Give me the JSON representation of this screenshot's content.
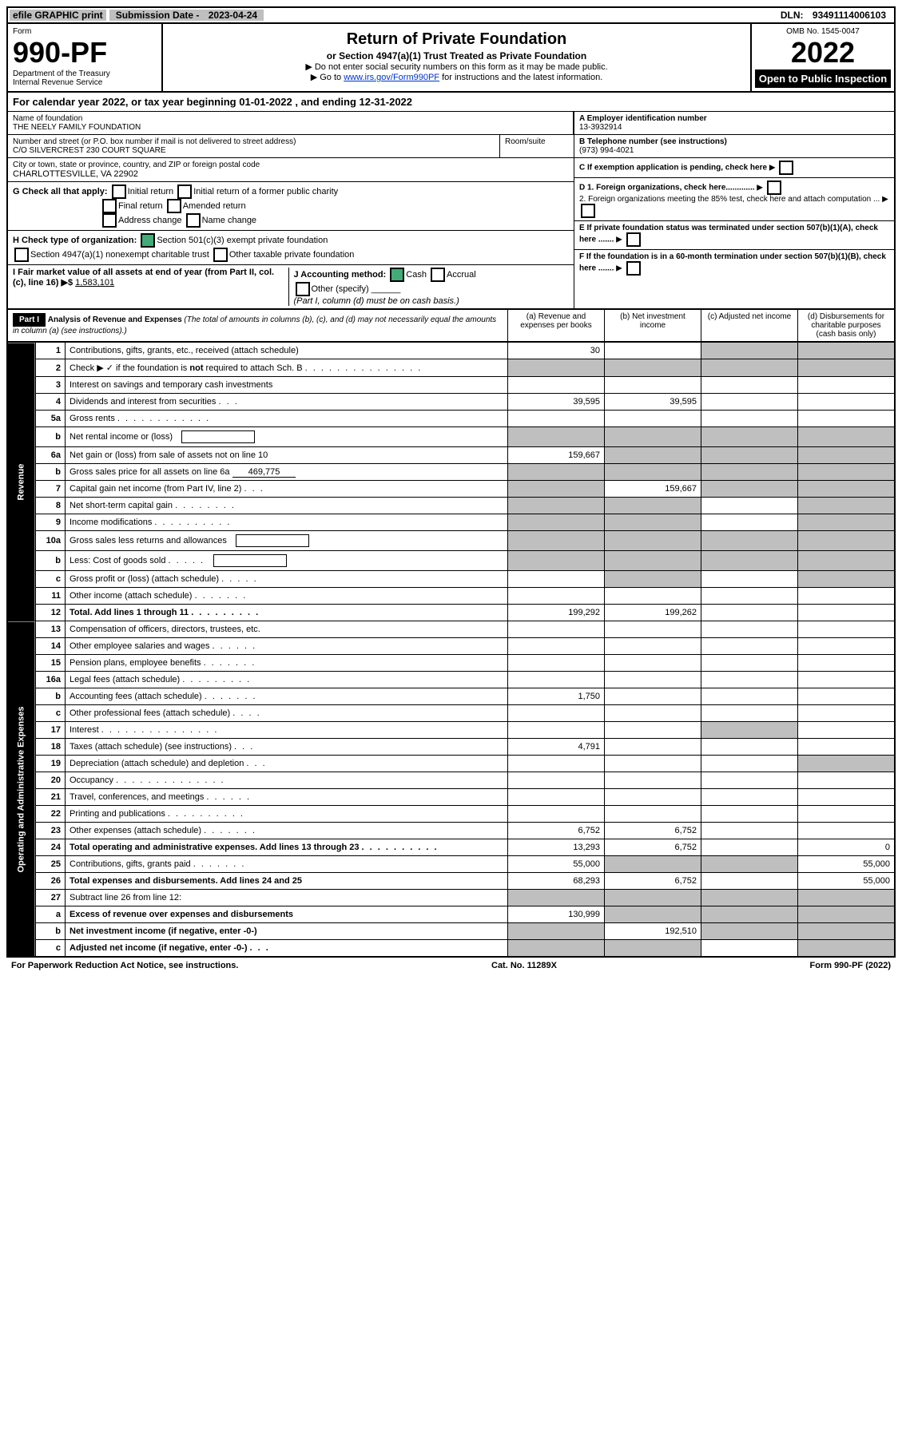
{
  "top": {
    "efile": "efile GRAPHIC print",
    "submission_label": "Submission Date - ",
    "submission_date": "2023-04-24",
    "dln_label": "DLN: ",
    "dln": "93491114006103"
  },
  "header": {
    "form_label": "Form",
    "form_num": "990-PF",
    "dept": "Department of the Treasury",
    "irs": "Internal Revenue Service",
    "title": "Return of Private Foundation",
    "subtitle": "or Section 4947(a)(1) Trust Treated as Private Foundation",
    "instr1": "▶ Do not enter social security numbers on this form as it may be made public.",
    "instr2_prefix": "▶ Go to ",
    "instr2_link": "www.irs.gov/Form990PF",
    "instr2_suffix": " for instructions and the latest information.",
    "omb": "OMB No. 1545-0047",
    "year": "2022",
    "open": "Open to Public Inspection"
  },
  "cal_year": {
    "prefix": "For calendar year 2022, or tax year beginning ",
    "begin": "01-01-2022",
    "mid": " , and ending ",
    "end": "12-31-2022"
  },
  "id": {
    "name_label": "Name of foundation",
    "name": "THE NEELY FAMILY FOUNDATION",
    "addr_label": "Number and street (or P.O. box number if mail is not delivered to street address)",
    "addr": "C/O SILVERCREST 230 COURT SQUARE",
    "room_label": "Room/suite",
    "city_label": "City or town, state or province, country, and ZIP or foreign postal code",
    "city": "CHARLOTTESVILLE, VA  22902",
    "a_label": "A Employer identification number",
    "a": "13-3932914",
    "b_label": "B Telephone number (see instructions)",
    "b": "(973) 994-4021",
    "c": "C If exemption application is pending, check here",
    "g_label": "G Check all that apply:",
    "g1": "Initial return",
    "g2": "Final return",
    "g3": "Address change",
    "g4": "Initial return of a former public charity",
    "g5": "Amended return",
    "g6": "Name change",
    "d1": "D 1. Foreign organizations, check here.............",
    "d2": "2. Foreign organizations meeting the 85% test, check here and attach computation ...",
    "h_label": "H Check type of organization:",
    "h1": "Section 501(c)(3) exempt private foundation",
    "h2": "Section 4947(a)(1) nonexempt charitable trust",
    "h3": "Other taxable private foundation",
    "e": "E If private foundation status was terminated under section 507(b)(1)(A), check here .......",
    "i_label": "I Fair market value of all assets at end of year (from Part II, col. (c), line 16) ▶$ ",
    "i_val": "1,583,101",
    "j_label": "J Accounting method:",
    "j_cash": "Cash",
    "j_accrual": "Accrual",
    "j_other": "Other (specify)",
    "j_note": "(Part I, column (d) must be on cash basis.)",
    "f": "F If the foundation is in a 60-month termination under section 507(b)(1)(B), check here ......."
  },
  "part1": {
    "label": "Part I",
    "title": "Analysis of Revenue and Expenses ",
    "note": "(The total of amounts in columns (b), (c), and (d) may not necessarily equal the amounts in column (a) (see instructions).)",
    "col_a": "(a)   Revenue and expenses per books",
    "col_b": "(b)   Net investment income",
    "col_c": "(c)   Adjusted net income",
    "col_d": "(d)   Disbursements for charitable purposes (cash basis only)"
  },
  "sides": {
    "revenue": "Revenue",
    "expenses": "Operating and Administrative Expenses"
  },
  "rows": [
    {
      "n": "1",
      "d": "Contributions, gifts, grants, etc., received (attach schedule)",
      "a": "30",
      "grey_c": true,
      "grey_d": true
    },
    {
      "n": "2",
      "d": "Check ▶ ✓  if the foundation is not required to attach Sch. B",
      "dots": ".  .  .  .  .  .  .  .  .  .  .  .  .  .  .",
      "grey_all": true,
      "bold_not": true
    },
    {
      "n": "3",
      "d": "Interest on savings and temporary cash investments"
    },
    {
      "n": "4",
      "d": "Dividends and interest from securities",
      "dots": ".  .  .",
      "a": "39,595",
      "b": "39,595"
    },
    {
      "n": "5a",
      "d": "Gross rents",
      "dots": ".  .  .  .  .  .  .  .  .  .  .  ."
    },
    {
      "n": "b",
      "d": "Net rental income or (loss)",
      "inline_box": true,
      "grey_all": true
    },
    {
      "n": "6a",
      "d": "Net gain or (loss) from sale of assets not on line 10",
      "a": "159,667",
      "grey_b": true,
      "grey_c": true,
      "grey_d": true
    },
    {
      "n": "b",
      "d": "Gross sales price for all assets on line 6a",
      "inline_val": "469,775",
      "grey_all": true
    },
    {
      "n": "7",
      "d": "Capital gain net income (from Part IV, line 2)",
      "dots": ".  .  .",
      "grey_a": true,
      "b": "159,667",
      "grey_c": true,
      "grey_d": true
    },
    {
      "n": "8",
      "d": "Net short-term capital gain",
      "dots": ".  .  .  .  .  .  .  .",
      "grey_a": true,
      "grey_b": true,
      "grey_d": true
    },
    {
      "n": "9",
      "d": "Income modifications",
      "dots": ".  .  .  .  .  .  .  .  .  .",
      "grey_a": true,
      "grey_b": true,
      "grey_d": true
    },
    {
      "n": "10a",
      "d": "Gross sales less returns and allowances",
      "inline_box": true,
      "grey_all": true
    },
    {
      "n": "b",
      "d": "Less: Cost of goods sold",
      "dots": ".  .  .  .  .",
      "inline_box": true,
      "grey_all": true
    },
    {
      "n": "c",
      "d": "Gross profit or (loss) (attach schedule)",
      "dots": ".  .  .  .  .",
      "grey_b": true,
      "grey_d": true
    },
    {
      "n": "11",
      "d": "Other income (attach schedule)",
      "dots": ".  .  .  .  .  .  ."
    },
    {
      "n": "12",
      "d": "Total. Add lines 1 through 11",
      "dots": ".  .  .  .  .  .  .  .  .",
      "a": "199,292",
      "b": "199,262",
      "bold": true
    },
    {
      "n": "13",
      "d": "Compensation of officers, directors, trustees, etc."
    },
    {
      "n": "14",
      "d": "Other employee salaries and wages",
      "dots": ".  .  .  .  .  ."
    },
    {
      "n": "15",
      "d": "Pension plans, employee benefits",
      "dots": ".  .  .  .  .  .  ."
    },
    {
      "n": "16a",
      "d": "Legal fees (attach schedule)",
      "dots": ".  .  .  .  .  .  .  .  ."
    },
    {
      "n": "b",
      "d": "Accounting fees (attach schedule)",
      "dots": ".  .  .  .  .  .  .",
      "a": "1,750"
    },
    {
      "n": "c",
      "d": "Other professional fees (attach schedule)",
      "dots": ".  .  .  ."
    },
    {
      "n": "17",
      "d": "Interest",
      "dots": ".  .  .  .  .  .  .  .  .  .  .  .  .  .  .",
      "grey_c": true
    },
    {
      "n": "18",
      "d": "Taxes (attach schedule) (see instructions)",
      "dots": ".  .  .",
      "a": "4,791"
    },
    {
      "n": "19",
      "d": "Depreciation (attach schedule) and depletion",
      "dots": ".  .  .",
      "grey_d": true
    },
    {
      "n": "20",
      "d": "Occupancy",
      "dots": ".  .  .  .  .  .  .  .  .  .  .  .  .  ."
    },
    {
      "n": "21",
      "d": "Travel, conferences, and meetings",
      "dots": ".  .  .  .  .  ."
    },
    {
      "n": "22",
      "d": "Printing and publications",
      "dots": ".  .  .  .  .  .  .  .  .  ."
    },
    {
      "n": "23",
      "d": "Other expenses (attach schedule)",
      "dots": ".  .  .  .  .  .  .",
      "a": "6,752",
      "b": "6,752"
    },
    {
      "n": "24",
      "d": "Total operating and administrative expenses. Add lines 13 through 23",
      "dots": ".  .  .  .  .  .  .  .  .  .",
      "a": "13,293",
      "b": "6,752",
      "d_": "0",
      "bold": true
    },
    {
      "n": "25",
      "d": "Contributions, gifts, grants paid",
      "dots": ".  .  .  .  .  .  .",
      "a": "55,000",
      "grey_b": true,
      "grey_c": true,
      "d_": "55,000"
    },
    {
      "n": "26",
      "d": "Total expenses and disbursements. Add lines 24 and 25",
      "a": "68,293",
      "b": "6,752",
      "d_": "55,000",
      "bold": true
    },
    {
      "n": "27",
      "d": "Subtract line 26 from line 12:",
      "grey_all": true
    },
    {
      "n": "a",
      "d": "Excess of revenue over expenses and disbursements",
      "a": "130,999",
      "grey_b": true,
      "grey_c": true,
      "grey_d": true,
      "bold": true
    },
    {
      "n": "b",
      "d": "Net investment income (if negative, enter -0-)",
      "grey_a": true,
      "b": "192,510",
      "grey_c": true,
      "grey_d": true,
      "bold": true
    },
    {
      "n": "c",
      "d": "Adjusted net income (if negative, enter -0-)",
      "dots": ".  .  .",
      "grey_a": true,
      "grey_b": true,
      "grey_d": true,
      "bold": true
    }
  ],
  "footer": {
    "left": "For Paperwork Reduction Act Notice, see instructions.",
    "mid": "Cat. No. 11289X",
    "right": "Form 990-PF (2022)"
  }
}
